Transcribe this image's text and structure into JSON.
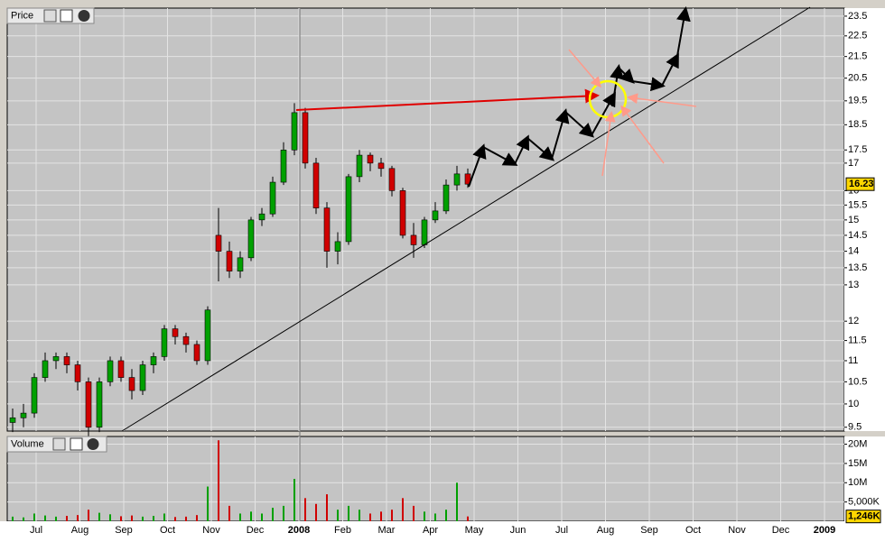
{
  "chart_data": {
    "type": "candlestick",
    "price_label": "Price",
    "volume_label": "Volume",
    "categories": [
      "Jul",
      "Aug",
      "Sep",
      "Oct",
      "Nov",
      "Dec",
      "2008",
      "Feb",
      "Mar",
      "Apr",
      "May",
      "Jun",
      "Jul",
      "Aug",
      "Sep",
      "Oct",
      "Nov",
      "Dec",
      "2009"
    ],
    "log_scale": true,
    "grid": true,
    "up_color": "#00a000",
    "down_color": "#d00000",
    "ylim": [
      9.42,
      23.92
    ],
    "yticks": [
      9.5,
      10,
      10.5,
      11,
      11.5,
      12,
      13,
      13.5,
      14,
      14.5,
      15,
      15.5,
      16,
      17,
      17.5,
      18.5,
      19.5,
      20.5,
      21.5,
      22.5,
      23.5
    ],
    "y2lim": [
      0,
      22000000
    ],
    "y2ticks": [
      {
        "value": 5000000,
        "label": "5,000K"
      },
      {
        "value": 10000000,
        "label": "10M"
      },
      {
        "value": 15000000,
        "label": "15M"
      },
      {
        "value": 20000000,
        "label": "20M"
      }
    ],
    "last_price": 16.23,
    "last_volume": {
      "value": 1246000,
      "label": "1,246K"
    },
    "open": [
      9.6,
      9.7,
      9.8,
      10.6,
      11.0,
      11.1,
      10.9,
      10.5,
      9.5,
      10.5,
      11.0,
      10.6,
      10.3,
      10.9,
      11.1,
      11.8,
      11.6,
      11.4,
      11.0,
      14.5,
      14.0,
      13.4,
      13.8,
      15.0,
      15.2,
      16.3,
      17.5,
      19.0,
      17.0,
      15.4,
      14.0,
      14.3,
      16.5,
      17.3,
      17.0,
      16.8,
      16.0,
      14.5,
      14.2,
      15.0,
      15.3,
      16.2,
      16.6
    ],
    "high": [
      9.9,
      10.0,
      10.7,
      11.2,
      11.2,
      11.2,
      11.0,
      10.6,
      10.6,
      11.1,
      11.1,
      10.8,
      11.0,
      11.2,
      11.9,
      11.9,
      11.7,
      11.5,
      12.4,
      15.4,
      14.3,
      14.0,
      15.1,
      15.4,
      16.5,
      17.8,
      19.4,
      19.2,
      17.2,
      15.6,
      14.6,
      16.6,
      17.5,
      17.4,
      17.2,
      16.9,
      16.1,
      14.9,
      15.1,
      15.6,
      16.4,
      16.9,
      16.8
    ],
    "low": [
      9.4,
      9.5,
      9.7,
      10.5,
      10.8,
      10.7,
      10.3,
      9.3,
      9.4,
      10.4,
      10.5,
      10.1,
      10.2,
      10.7,
      11.0,
      11.4,
      11.2,
      10.9,
      10.9,
      13.1,
      13.2,
      13.2,
      13.7,
      14.8,
      15.1,
      16.2,
      17.3,
      16.8,
      15.2,
      13.5,
      13.6,
      14.2,
      16.3,
      16.7,
      16.5,
      15.8,
      14.4,
      13.8,
      14.1,
      14.9,
      15.2,
      16.0,
      16.1
    ],
    "close": [
      9.7,
      9.8,
      10.6,
      11.0,
      11.1,
      10.9,
      10.5,
      9.5,
      10.5,
      11.0,
      10.6,
      10.3,
      10.9,
      11.1,
      11.8,
      11.6,
      11.4,
      11.0,
      12.3,
      14.0,
      13.4,
      13.8,
      15.0,
      15.2,
      16.3,
      17.5,
      19.0,
      17.0,
      15.4,
      14.0,
      14.3,
      16.5,
      17.3,
      17.0,
      16.8,
      16.0,
      14.5,
      14.2,
      15.0,
      15.3,
      16.2,
      16.6,
      16.23
    ],
    "volume": [
      1200000,
      1000000,
      2000000,
      1500000,
      1200000,
      1400000,
      1600000,
      3000000,
      2200000,
      1800000,
      1300000,
      1500000,
      1200000,
      1400000,
      2000000,
      1100000,
      1200000,
      1600000,
      9000000,
      21000000,
      4000000,
      2000000,
      2500000,
      2000000,
      3500000,
      4000000,
      11000000,
      6000000,
      4500000,
      7000000,
      3000000,
      4000000,
      3000000,
      2000000,
      2500000,
      3000000,
      6000000,
      4000000,
      2500000,
      2000000,
      3000000,
      10000000,
      1246000
    ]
  }
}
